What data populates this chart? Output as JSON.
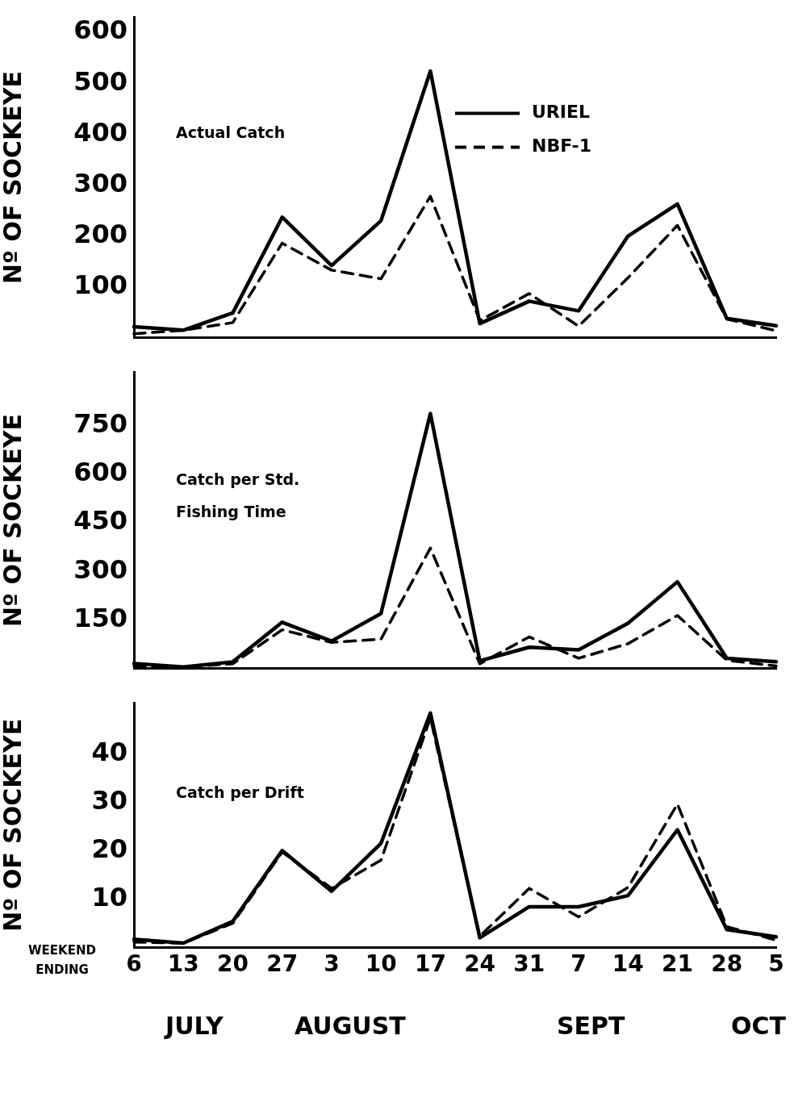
{
  "chart_data": [
    {
      "type": "line",
      "title": "Actual Catch",
      "ylabel": "Nº OF SOCKEYE",
      "categories": [
        "6",
        "13",
        "20",
        "27",
        "3",
        "10",
        "17",
        "24",
        "31",
        "7",
        "14",
        "21",
        "28",
        "5"
      ],
      "series": [
        {
          "name": "URIEL",
          "color": "#000000",
          "line_style": "solid",
          "values": [
            22,
            15,
            49,
            237,
            142,
            230,
            524,
            28,
            72,
            53,
            200,
            263,
            38,
            24
          ]
        },
        {
          "name": "NBF-1",
          "color": "#000000",
          "line_style": "dashed",
          "values": [
            8,
            15,
            30,
            186,
            133,
            116,
            278,
            34,
            87,
            23,
            118,
            221,
            37,
            14
          ]
        }
      ],
      "ylim": [
        0,
        630
      ],
      "yticks": [
        100,
        200,
        300,
        400,
        500,
        600
      ],
      "tick_labels": "y",
      "legend": "top right",
      "grid": false,
      "marker": "none"
    },
    {
      "type": "line",
      "title": "Catch per Std. Fishing Time",
      "ylabel": "Nº OF SOCKEYE",
      "categories": [
        "6",
        "13",
        "20",
        "27",
        "3",
        "10",
        "17",
        "24",
        "31",
        "7",
        "14",
        "21",
        "28",
        "5"
      ],
      "series": [
        {
          "color": "#000000",
          "line_style": "solid",
          "values": [
            16,
            5,
            21,
            143,
            85,
            170,
            787,
            24,
            66,
            58,
            140,
            268,
            32,
            21
          ]
        },
        {
          "color": "#000000",
          "line_style": "dashed",
          "values": [
            8,
            5,
            15,
            120,
            81,
            91,
            372,
            15,
            98,
            32,
            77,
            164,
            26,
            8
          ]
        }
      ],
      "ylim": [
        0,
        915
      ],
      "yticks": [
        150,
        300,
        450,
        600,
        750
      ],
      "tick_labels": "y",
      "grid": false,
      "marker": "none"
    },
    {
      "type": "line",
      "title": "Catch per Drift",
      "ylabel": "Nº OF SOCKEYE",
      "categories": [
        "6",
        "13",
        "20",
        "27",
        "3",
        "10",
        "17",
        "24",
        "31",
        "7",
        "14",
        "21",
        "28",
        "5"
      ],
      "series": [
        {
          "color": "#000000",
          "line_style": "solid",
          "values": [
            1.7,
            0.9,
            5.4,
            20,
            11.6,
            21.5,
            48.4,
            2,
            8.4,
            8.4,
            10.7,
            24.3,
            3.7,
            2.2
          ]
        },
        {
          "color": "#000000",
          "line_style": "dashed",
          "values": [
            1.1,
            0.9,
            5,
            19.7,
            12.2,
            18,
            47.4,
            2.3,
            12.2,
            6.3,
            12.4,
            29.6,
            4.3,
            1.5
          ]
        }
      ],
      "ylim": [
        0,
        50.5
      ],
      "yticks": [
        10,
        20,
        30,
        40
      ],
      "grid": false,
      "marker": "none",
      "annotations": [
        "WEEKEND ENDING",
        "JULY",
        "AUGUST",
        "SEPT",
        "OCT"
      ]
    }
  ]
}
